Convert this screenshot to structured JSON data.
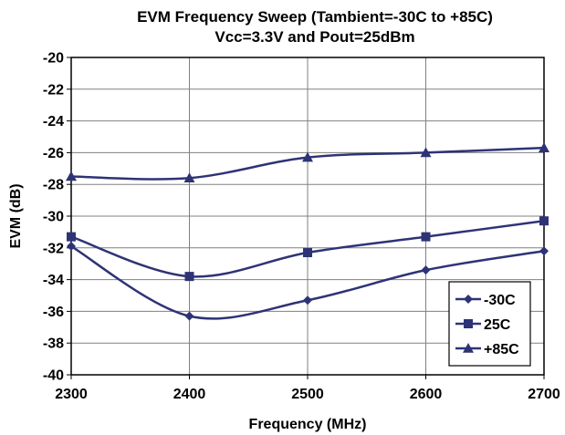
{
  "chart_data": {
    "type": "line",
    "title": "EVM Frequency Sweep (Tambient=-30C to +85C)",
    "subtitle": "Vcc=3.3V and Pout=25dBm",
    "xlabel": "Frequency (MHz)",
    "ylabel": "EVM (dB)",
    "x": [
      2300,
      2400,
      2500,
      2600,
      2700
    ],
    "xlim": [
      2300,
      2700
    ],
    "ylim": [
      -40,
      -20
    ],
    "xticks": [
      "2300",
      "2400",
      "2500",
      "2600",
      "2700"
    ],
    "yticks": [
      "-20",
      "-22",
      "-24",
      "-26",
      "-28",
      "-30",
      "-32",
      "-34",
      "-36",
      "-38",
      "-40"
    ],
    "grid": true,
    "legend_position": "bottom-right",
    "series": [
      {
        "name": "-30C",
        "marker": "diamond",
        "values": [
          -31.9,
          -36.3,
          -35.3,
          -33.4,
          -32.2
        ]
      },
      {
        "name": "25C",
        "marker": "square",
        "values": [
          -31.3,
          -33.8,
          -32.3,
          -31.3,
          -30.3
        ]
      },
      {
        "name": "+85C",
        "marker": "triangle",
        "values": [
          -27.5,
          -27.6,
          -26.3,
          -26.0,
          -25.7
        ]
      }
    ],
    "colors": {
      "series": "#2e3376",
      "grid": "#808080",
      "frame": "#000000"
    }
  }
}
